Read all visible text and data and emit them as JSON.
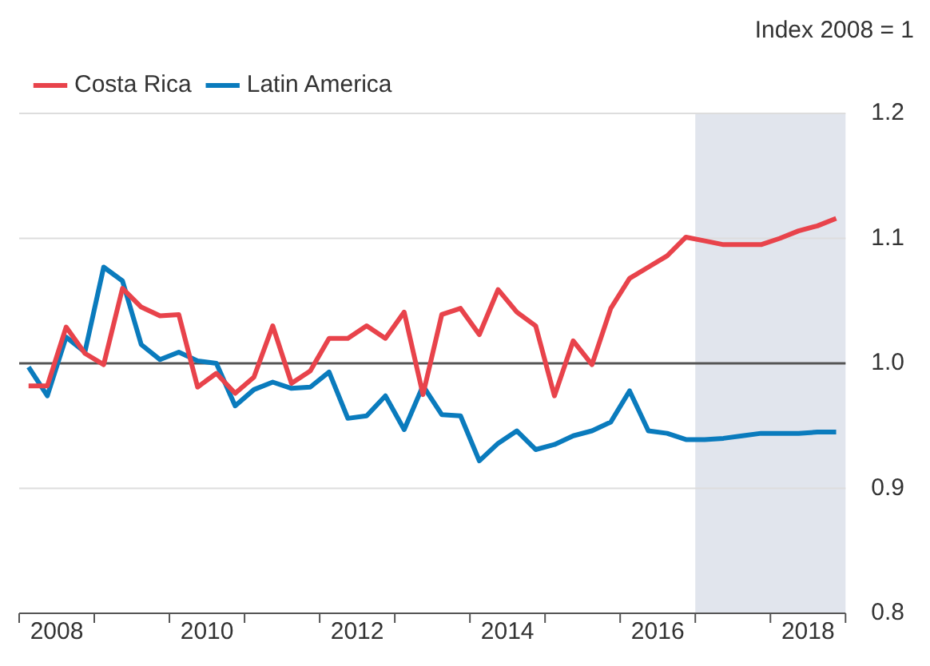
{
  "chart_data": {
    "type": "line",
    "ylabel": "Index 2008 = 1",
    "x": [
      2008.125,
      2008.375,
      2008.625,
      2008.875,
      2009.125,
      2009.375,
      2009.625,
      2009.875,
      2010.125,
      2010.375,
      2010.625,
      2010.875,
      2011.125,
      2011.375,
      2011.625,
      2011.875,
      2012.125,
      2012.375,
      2012.625,
      2012.875,
      2013.125,
      2013.375,
      2013.625,
      2013.875,
      2014.125,
      2014.375,
      2014.625,
      2014.875,
      2015.125,
      2015.375,
      2015.625,
      2015.875,
      2016.125,
      2016.375,
      2016.625,
      2016.875,
      2017.125,
      2017.375,
      2017.625,
      2017.875,
      2018.125,
      2018.375,
      2018.625,
      2018.875
    ],
    "series": [
      {
        "name": "Costa Rica",
        "color": "#e8434b",
        "values": [
          0.982,
          0.982,
          1.029,
          1.008,
          0.999,
          1.06,
          1.045,
          1.038,
          1.039,
          0.981,
          0.992,
          0.976,
          0.989,
          1.03,
          0.984,
          0.994,
          1.02,
          1.02,
          1.03,
          1.02,
          1.041,
          0.975,
          1.039,
          1.044,
          1.023,
          1.059,
          1.041,
          1.03,
          0.974,
          1.018,
          0.999,
          1.044,
          1.068,
          1.077,
          1.086,
          1.101,
          1.098,
          1.095,
          1.095,
          1.095,
          1.1,
          1.106,
          1.11,
          1.116
        ]
      },
      {
        "name": "Latin America",
        "color": "#0a7bbd",
        "values": [
          0.997,
          0.974,
          1.021,
          1.009,
          1.077,
          1.066,
          1.015,
          1.003,
          1.009,
          1.002,
          1.0,
          0.966,
          0.979,
          0.985,
          0.98,
          0.981,
          0.993,
          0.956,
          0.958,
          0.974,
          0.947,
          0.982,
          0.959,
          0.958,
          0.922,
          0.936,
          0.946,
          0.931,
          0.935,
          0.942,
          0.946,
          0.953,
          0.978,
          0.946,
          0.944,
          0.939,
          0.939,
          0.94,
          0.942,
          0.944,
          0.944,
          0.944,
          0.945,
          0.945
        ]
      }
    ],
    "xlim": [
      2008,
      2019
    ],
    "xticks": [
      {
        "value": 2008,
        "label": null
      },
      {
        "value": 2008.5,
        "label": "2008"
      },
      {
        "value": 2009,
        "label": null
      },
      {
        "value": 2010,
        "label": null
      },
      {
        "value": 2010.5,
        "label": "2010"
      },
      {
        "value": 2011,
        "label": null
      },
      {
        "value": 2012,
        "label": null
      },
      {
        "value": 2012.5,
        "label": "2012"
      },
      {
        "value": 2013,
        "label": null
      },
      {
        "value": 2014,
        "label": null
      },
      {
        "value": 2014.5,
        "label": "2014"
      },
      {
        "value": 2015,
        "label": null
      },
      {
        "value": 2016,
        "label": null
      },
      {
        "value": 2016.5,
        "label": "2016"
      },
      {
        "value": 2017,
        "label": null
      },
      {
        "value": 2018,
        "label": null
      },
      {
        "value": 2018.5,
        "label": "2018"
      },
      {
        "value": 2019,
        "label": null
      }
    ],
    "ylim": [
      0.8,
      1.2
    ],
    "yticks": [
      {
        "value": 0.8,
        "label": "0.8"
      },
      {
        "value": 0.9,
        "label": "0.9"
      },
      {
        "value": 1.0,
        "label": "1.0"
      },
      {
        "value": 1.1,
        "label": "1.1"
      },
      {
        "value": 1.2,
        "label": "1.2"
      }
    ],
    "ref_lines": [
      {
        "axis": "y",
        "value": 1.0,
        "color": "#555555"
      }
    ],
    "bands": [
      {
        "axis": "x",
        "from": 2017,
        "to": 2019,
        "color": "#e1e5ed"
      }
    ],
    "grid": "y",
    "legend": "top",
    "marker": "none",
    "line_style": "solid"
  }
}
